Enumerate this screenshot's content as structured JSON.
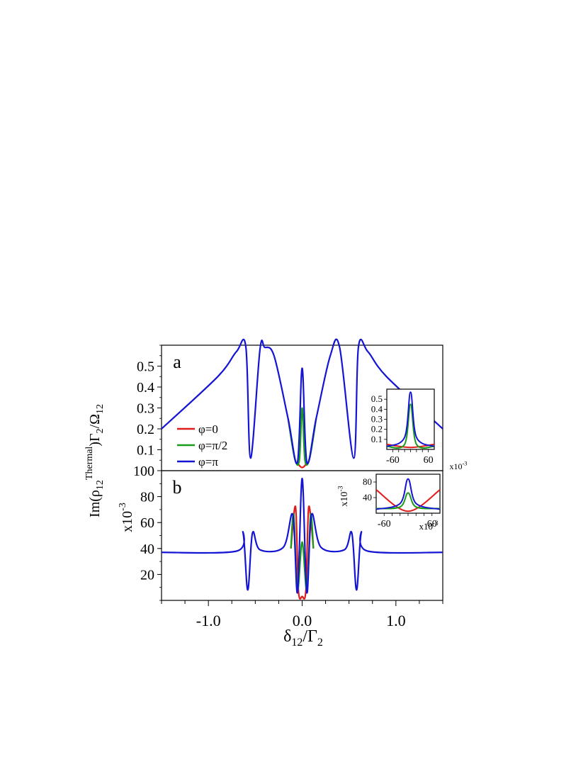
{
  "figure": {
    "ylabel_main": "Im(ρ",
    "ylabel_sub1": "12",
    "ylabel_sup": "Thermal",
    "ylabel_mid": ")Γ",
    "ylabel_sub2": "2",
    "ylabel_div": "/Ω",
    "ylabel_sub3": "12",
    "xlabel_main": "δ",
    "xlabel_sub1": "12",
    "xlabel_div": "/Γ",
    "xlabel_sub2": "2"
  },
  "chart_data": [
    {
      "type": "line",
      "panel_label": "a",
      "xlim": [
        -1.5,
        1.5
      ],
      "ylim": [
        0.0,
        0.6
      ],
      "ytick_labels": [
        "0.1",
        "0.2",
        "0.3",
        "0.4",
        "0.5"
      ],
      "yticks": [
        0.1,
        0.2,
        0.3,
        0.4,
        0.5
      ],
      "series": [
        {
          "name": "φ=0",
          "color": "#e01b1b",
          "x": [
            -0.15,
            -0.08,
            -0.04,
            0.0,
            0.04,
            0.08,
            0.15
          ],
          "y": [
            0.25,
            0.06,
            0.03,
            0.015,
            0.03,
            0.06,
            0.25
          ]
        },
        {
          "name": "φ=π/2",
          "color": "#1a9c1a",
          "x": [
            -0.15,
            -0.08,
            -0.03,
            0.0,
            0.03,
            0.08,
            0.15
          ],
          "y": [
            0.25,
            0.06,
            0.05,
            0.3,
            0.05,
            0.06,
            0.25
          ]
        },
        {
          "name": "φ=π",
          "color": "#1414d4",
          "x": [
            -1.5,
            -0.9,
            -0.7,
            -0.6,
            -0.55,
            -0.45,
            -0.4,
            -0.3,
            -0.15,
            -0.05,
            0.0,
            0.05,
            0.15,
            0.3,
            0.4,
            0.55,
            0.6,
            0.7,
            0.9,
            1.5
          ],
          "y": [
            0.2,
            0.45,
            0.57,
            0.59,
            0.06,
            0.58,
            0.59,
            0.55,
            0.25,
            0.04,
            0.49,
            0.04,
            0.25,
            0.55,
            0.59,
            0.06,
            0.59,
            0.57,
            0.45,
            0.2
          ]
        }
      ],
      "inset": {
        "xlim": [
          -80,
          80
        ],
        "ylim": [
          0.0,
          0.6
        ],
        "xtick_labels": [
          "-60",
          "60"
        ],
        "xticks": [
          -60,
          60
        ],
        "ytick_labels": [
          "0.1",
          "0.2",
          "0.3",
          "0.4",
          "0.5"
        ],
        "yticks": [
          0.1,
          0.2,
          0.3,
          0.4,
          0.5
        ],
        "x_multiplier": "x10",
        "x_multiplier_exp": "-3",
        "series": [
          {
            "color": "#e01b1b",
            "x": [
              -80,
              0,
              80
            ],
            "y": [
              0.05,
              0.02,
              0.05
            ]
          },
          {
            "color": "#1a9c1a",
            "x": [
              -80,
              -20,
              0,
              20,
              80
            ],
            "y": [
              0.03,
              0.05,
              0.45,
              0.05,
              0.03
            ]
          },
          {
            "color": "#1414d4",
            "x": [
              -80,
              -20,
              0,
              20,
              80
            ],
            "y": [
              0.03,
              0.12,
              0.57,
              0.12,
              0.03
            ]
          }
        ]
      }
    },
    {
      "type": "line",
      "panel_label": "b",
      "xlim": [
        -1.5,
        1.5
      ],
      "ylim": [
        0,
        100
      ],
      "xtick_labels": [
        "-1.0",
        "0.0",
        "1.0"
      ],
      "xticks": [
        -1.0,
        0.0,
        1.0
      ],
      "ytick_labels": [
        "20",
        "40",
        "60",
        "80",
        "100"
      ],
      "yticks": [
        20,
        40,
        60,
        80,
        100
      ],
      "y_multiplier": "x10",
      "y_multiplier_exp": "-3",
      "series": [
        {
          "name": "φ=0",
          "color": "#e01b1b",
          "x": [
            -0.12,
            -0.07,
            -0.04,
            0.0,
            0.04,
            0.07,
            0.12
          ],
          "y": [
            40,
            72,
            8,
            3,
            8,
            72,
            40
          ]
        },
        {
          "name": "φ=π/2",
          "color": "#1a9c1a",
          "x": [
            -0.12,
            -0.09,
            -0.05,
            0.0,
            0.05,
            0.09,
            0.12
          ],
          "y": [
            40,
            66,
            8,
            45,
            8,
            66,
            40
          ]
        },
        {
          "name": "φ=π",
          "color": "#1414d4",
          "x": [
            -1.5,
            -0.7,
            -0.63,
            -0.58,
            -0.53,
            -0.45,
            -0.2,
            -0.1,
            -0.05,
            0.0,
            0.05,
            0.1,
            0.2,
            0.45,
            0.53,
            0.58,
            0.63,
            0.7,
            1.5
          ],
          "y": [
            37,
            38,
            52,
            8,
            52,
            39,
            41,
            66,
            6,
            94,
            6,
            66,
            41,
            39,
            52,
            8,
            52,
            38,
            37
          ]
        }
      ],
      "inset": {
        "xlim": [
          -80,
          80
        ],
        "ylim": [
          0,
          100
        ],
        "xtick_labels": [
          "-60",
          "60"
        ],
        "xticks": [
          -60,
          60
        ],
        "ytick_labels": [
          "40",
          "80"
        ],
        "yticks": [
          40,
          80
        ],
        "x_multiplier": "x10",
        "x_multiplier_exp": "-3",
        "y_multiplier": "x10",
        "y_multiplier_exp": "-3",
        "series": [
          {
            "color": "#e01b1b",
            "x": [
              -80,
              0,
              80
            ],
            "y": [
              60,
              5,
              60
            ]
          },
          {
            "color": "#1a9c1a",
            "x": [
              -80,
              -20,
              0,
              20,
              80
            ],
            "y": [
              12,
              16,
              52,
              16,
              12
            ]
          },
          {
            "color": "#1414d4",
            "x": [
              -80,
              -20,
              0,
              20,
              80
            ],
            "y": [
              10,
              25,
              88,
              25,
              10
            ]
          }
        ]
      }
    }
  ]
}
